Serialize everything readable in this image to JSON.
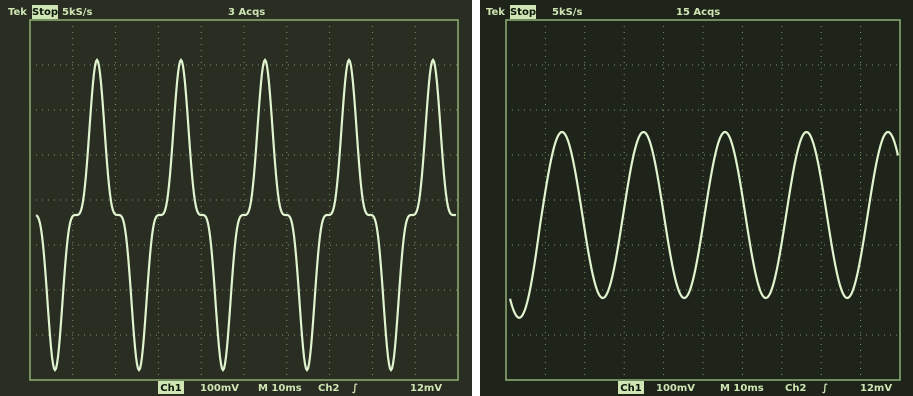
{
  "left": {
    "header": {
      "brand": "Tek",
      "status": "Stop",
      "rate": "5kS/s",
      "acqs": "3 Acqs"
    },
    "footer": {
      "channel": "Ch1",
      "volts": "100mV",
      "time": "M 10ms",
      "trigger_channel": "Ch2",
      "trigger_symbol": "∫",
      "trigger_level": "12mV"
    }
  },
  "right": {
    "header": {
      "brand": "Tek",
      "status": "Stop",
      "rate": "5kS/s",
      "acqs": "15 Acqs"
    },
    "footer": {
      "channel": "Ch1",
      "volts": "100mV",
      "time": "M 10ms",
      "trigger_channel": "Ch2",
      "trigger_symbol": "∫",
      "trigger_level": "12mV"
    }
  }
}
